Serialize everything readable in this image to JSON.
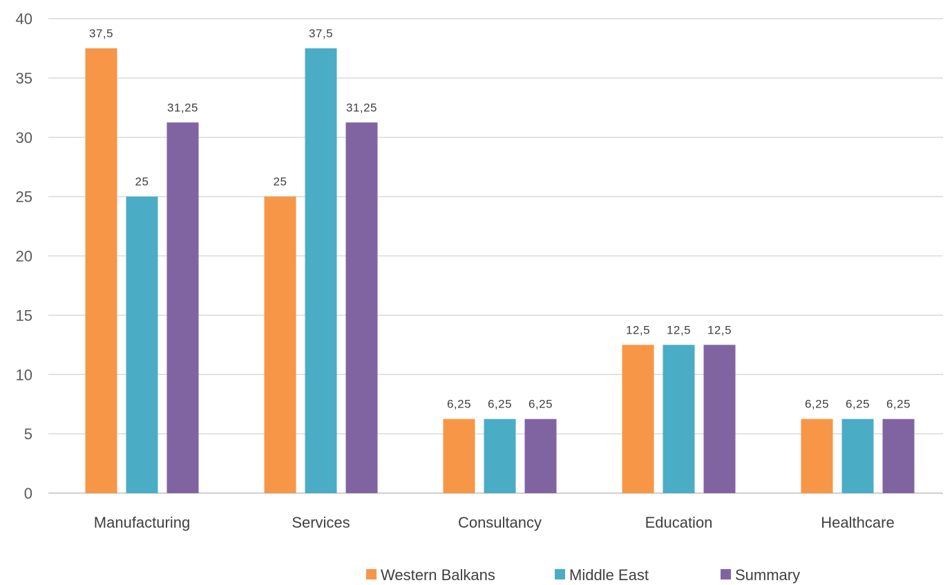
{
  "chart_data": {
    "type": "bar",
    "categories": [
      "Manufacturing",
      "Services",
      "Consultancy",
      "Education",
      "Healthcare"
    ],
    "series": [
      {
        "name": "Western Balkans",
        "color": "#f79646",
        "values": [
          37.5,
          25,
          6.25,
          12.5,
          6.25
        ],
        "labels": [
          "37,5",
          "25",
          "6,25",
          "12,5",
          "6,25"
        ]
      },
      {
        "name": "Middle East",
        "color": "#4bacc6",
        "values": [
          25,
          37.5,
          6.25,
          12.5,
          6.25
        ],
        "labels": [
          "25",
          "37,5",
          "6,25",
          "12,5",
          "6,25"
        ]
      },
      {
        "name": "Summary",
        "color": "#8064a2",
        "values": [
          31.25,
          31.25,
          6.25,
          12.5,
          6.25
        ],
        "labels": [
          "31,25",
          "31,25",
          "6,25",
          "12,5",
          "6,25"
        ]
      }
    ],
    "ylim": [
      0,
      40
    ],
    "yticks": [
      "0",
      "5",
      "10",
      "15",
      "20",
      "25",
      "30",
      "35",
      "40"
    ],
    "title": "",
    "xlabel": "",
    "ylabel": "",
    "grid": true,
    "legend": "bottom"
  }
}
